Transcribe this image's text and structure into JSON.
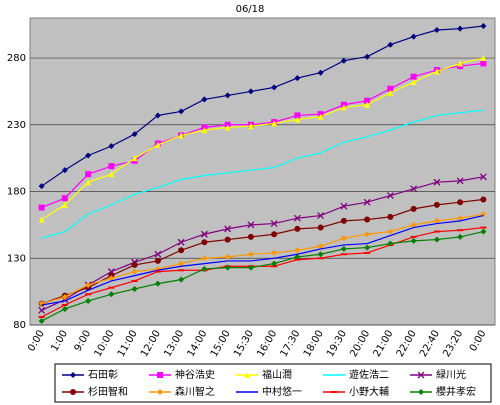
{
  "chart_data": {
    "type": "line",
    "title": "06/18",
    "categories": [
      "0:00",
      "1:00",
      "9:00",
      "10:00",
      "11:00",
      "12:00",
      "13:00",
      "14:00",
      "15:00",
      "15:30",
      "16:00",
      "17:30",
      "18:00",
      "19:30",
      "20:00",
      "21:00",
      "22:00",
      "22:40",
      "23:20",
      "0:00"
    ],
    "ylim": [
      80,
      310
    ],
    "yticks": [
      80,
      130,
      180,
      230,
      280
    ],
    "grid": true,
    "background": "#c0c0c0",
    "series": [
      {
        "name": "石田彰",
        "color": "#000080",
        "marker": "diamond",
        "values": [
          184,
          196,
          207,
          214,
          223,
          237,
          240,
          249,
          252,
          255,
          258,
          265,
          269,
          278,
          281,
          290,
          296,
          301,
          302,
          304
        ]
      },
      {
        "name": "神谷浩史",
        "color": "#ff00ff",
        "marker": "square",
        "values": [
          168,
          175,
          193,
          199,
          203,
          216,
          222,
          228,
          230,
          230,
          232,
          237,
          238,
          245,
          248,
          257,
          266,
          271,
          274,
          276
        ]
      },
      {
        "name": "福山潤",
        "color": "#ffff00",
        "marker": "triangle",
        "values": [
          159,
          170,
          187,
          193,
          205,
          215,
          222,
          226,
          228,
          229,
          231,
          234,
          236,
          243,
          245,
          254,
          262,
          270,
          276,
          280
        ]
      },
      {
        "name": "遊佐浩二",
        "color": "#00ffff",
        "marker": "none",
        "values": [
          145,
          150,
          163,
          170,
          178,
          183,
          189,
          192,
          194,
          196,
          198,
          205,
          209,
          217,
          221,
          226,
          232,
          237,
          239,
          241
        ]
      },
      {
        "name": "緑川光",
        "color": "#800080",
        "marker": "x",
        "values": [
          91,
          99,
          110,
          120,
          127,
          133,
          142,
          148,
          152,
          155,
          156,
          160,
          162,
          169,
          172,
          177,
          182,
          187,
          188,
          191
        ]
      },
      {
        "name": "杉田智和",
        "color": "#800000",
        "marker": "circle",
        "values": [
          96,
          102,
          108,
          117,
          125,
          128,
          136,
          142,
          144,
          146,
          148,
          152,
          153,
          158,
          159,
          161,
          167,
          170,
          172,
          174
        ]
      },
      {
        "name": "森川智之",
        "color": "#ff9900",
        "marker": "diamond",
        "values": [
          96,
          101,
          110,
          115,
          120,
          122,
          126,
          130,
          131,
          133,
          134,
          136,
          139,
          145,
          148,
          150,
          155,
          158,
          160,
          163
        ]
      },
      {
        "name": "中村悠一",
        "color": "#0000ff",
        "marker": "none",
        "values": [
          95,
          98,
          106,
          113,
          117,
          121,
          124,
          126,
          128,
          128,
          130,
          133,
          137,
          140,
          141,
          147,
          153,
          156,
          158,
          162
        ]
      },
      {
        "name": "小野大輔",
        "color": "#ff0000",
        "marker": "dash",
        "values": [
          86,
          95,
          103,
          108,
          113,
          120,
          121,
          121,
          124,
          124,
          124,
          129,
          130,
          133,
          134,
          140,
          146,
          150,
          151,
          153
        ]
      },
      {
        "name": "櫻井孝宏",
        "color": "#008000",
        "marker": "diamond",
        "values": [
          83,
          92,
          98,
          103,
          107,
          111,
          114,
          122,
          123,
          123,
          126,
          131,
          133,
          137,
          138,
          141,
          143,
          144,
          146,
          150
        ]
      }
    ]
  }
}
